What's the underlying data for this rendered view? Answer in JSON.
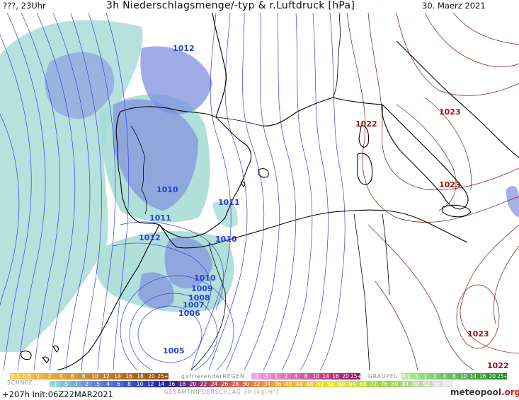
{
  "header": {
    "left": "???, 23Uhr",
    "title": "3h Niederschlagsmenge/-typ & r.Luftdruck [hPa]",
    "date": "30. Maerz 2021"
  },
  "isobar_labels": [
    {
      "text": "1012",
      "type": "low"
    },
    {
      "text": "1010",
      "type": "low"
    },
    {
      "text": "1011",
      "type": "low"
    },
    {
      "text": "1011",
      "type": "low"
    },
    {
      "text": "1012",
      "type": "low"
    },
    {
      "text": "1010",
      "type": "low"
    },
    {
      "text": "1010",
      "type": "low"
    },
    {
      "text": "1009",
      "type": "low"
    },
    {
      "text": "1008",
      "type": "low"
    },
    {
      "text": "1007",
      "type": "low"
    },
    {
      "text": "1006",
      "type": "low"
    },
    {
      "text": "1005",
      "type": "low"
    },
    {
      "text": "1022",
      "type": "high"
    },
    {
      "text": "1023",
      "type": "high"
    },
    {
      "text": "1023",
      "type": "high"
    },
    {
      "text": "1023",
      "type": "high"
    },
    {
      "text": "1022",
      "type": "high"
    }
  ],
  "legend": {
    "snow_label": "SCHNEE",
    "snow_scale": [
      "0.1",
      "0.5",
      "1",
      "2",
      "4",
      "6",
      "8",
      "10",
      "12",
      "14",
      "16",
      "18",
      "20",
      "25+"
    ],
    "freezing_rain_label": "gefrierenderREGEN",
    "freezing_rain_scale": [
      ".1",
      ".5",
      "1",
      "2",
      "4",
      "8",
      "10",
      "14",
      "16",
      "20",
      "25+"
    ],
    "graupel_label": "GRAUPEL",
    "graupel_scale": [
      "0.1",
      ".5",
      "1",
      "2",
      "4",
      "8",
      "10",
      "14",
      "16",
      "20",
      "25+"
    ],
    "total_label": "GESAMTNIEDERSCHLAG 3h [kg/m²]",
    "total_scale": [
      ".1",
      ".5",
      "1",
      "2",
      ".5",
      "4",
      "6",
      "8",
      "10",
      "12",
      "14",
      "16",
      "18",
      "20",
      "22",
      "24",
      "26",
      "28",
      "30",
      "32",
      "34",
      "36",
      "40",
      "44",
      "48",
      "52",
      "56",
      "60",
      "64",
      "68",
      "72",
      "76",
      "80",
      "84",
      "88",
      "92",
      "96",
      "100"
    ],
    "colors": {
      "snow": "#e8a020",
      "freezing_rain": "#e03aa0",
      "graupel": "#4cc63a",
      "rain_light": "#8fd0cc",
      "rain_mid": "#5a6fd8",
      "rain_heavy": "#d8a040"
    }
  },
  "footer": {
    "run": "+207h Init:06Z22MAR2021",
    "logo_main": "meteopool",
    "logo_tld": ".org"
  },
  "colors": {
    "isobar_low": "#3a3fd6",
    "isobar_high": "#8a1010",
    "coast": "#000000",
    "precip_light": "#a9dcd6",
    "precip_mid": "#7f90e0",
    "precip_strong": "#5c6ad8"
  }
}
